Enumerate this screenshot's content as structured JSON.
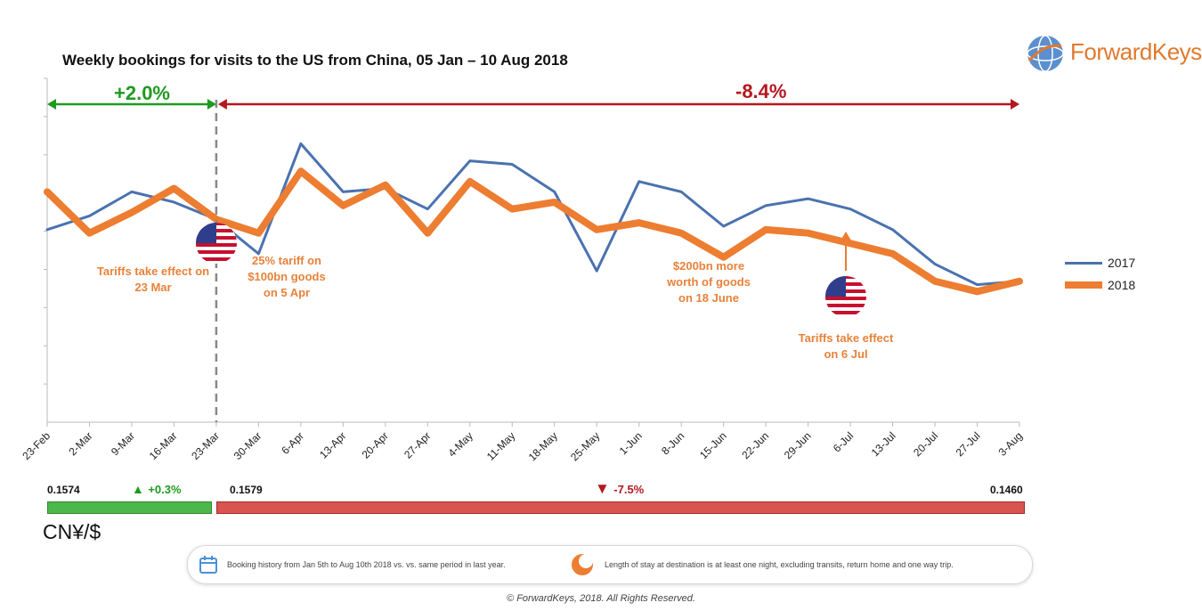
{
  "title": "Weekly bookings for visits to the US from China, 05 Jan – 10 Aug 2018",
  "logo": {
    "text": "ForwardKeys",
    "icon": "globe-icon"
  },
  "colors": {
    "s2017": "#4a72b0",
    "s2018": "#ed7d31",
    "green": "#1e9a1e",
    "red": "#b5171e",
    "bar_green": "#4cb74a",
    "bar_red": "#d9534f"
  },
  "periods": {
    "before": {
      "label": "+2.0%"
    },
    "after": {
      "label": "-8.4%"
    }
  },
  "annotations": {
    "tariff_mar": "Tariffs take effect on 23 Mar",
    "tariff_apr": "25% tariff on $100bn goods on 5 Apr",
    "tariff_jun": "$200bn more worth of goods on 18 June",
    "tariff_jul": "Tariffs take effect on 6 Jul"
  },
  "chart_data": {
    "type": "line",
    "title": "Weekly bookings for visits to the US from China, 05 Jan – 10 Aug 2018",
    "categories": [
      "23-Feb",
      "2-Mar",
      "9-Mar",
      "16-Mar",
      "23-Mar",
      "30-Mar",
      "6-Apr",
      "13-Apr",
      "20-Apr",
      "27-Apr",
      "4-May",
      "11-May",
      "18-May",
      "25-May",
      "1-Jun",
      "8-Jun",
      "15-Jun",
      "22-Jun",
      "29-Jun",
      "6-Jul",
      "13-Jul",
      "20-Jul",
      "27-Jul",
      "3-Aug"
    ],
    "series": [
      {
        "name": "2017",
        "values": [
          5.6,
          6.0,
          6.7,
          6.4,
          5.9,
          4.9,
          8.1,
          6.7,
          6.8,
          6.2,
          7.6,
          7.5,
          6.7,
          4.4,
          7.0,
          6.7,
          5.7,
          6.3,
          6.5,
          6.2,
          5.6,
          4.6,
          4.0,
          4.1
        ]
      },
      {
        "name": "2018",
        "values": [
          6.7,
          5.5,
          6.1,
          6.8,
          5.9,
          5.5,
          7.3,
          6.3,
          6.9,
          5.5,
          7.0,
          6.2,
          6.4,
          5.6,
          5.8,
          5.5,
          4.8,
          5.6,
          5.5,
          5.2,
          4.9,
          4.1,
          3.8,
          4.1
        ]
      }
    ],
    "ylim": [
      0,
      10
    ],
    "xlabel": "",
    "ylabel": "",
    "legend": "right",
    "grid": false
  },
  "fx": {
    "label": "CN¥/$",
    "start": "0.1574",
    "mid": "0.1579",
    "end": "0.1460",
    "before_change": "+0.3%",
    "after_change": "-7.5%"
  },
  "footer": {
    "booking_note": "Booking history from Jan 5th to Aug 10th 2018 vs. vs. same period in last year.",
    "stay_note": "Length of stay at destination is at least one night, excluding transits, return home and one way trip.",
    "copyright": "© ForwardKeys, 2018. All Rights Reserved."
  }
}
